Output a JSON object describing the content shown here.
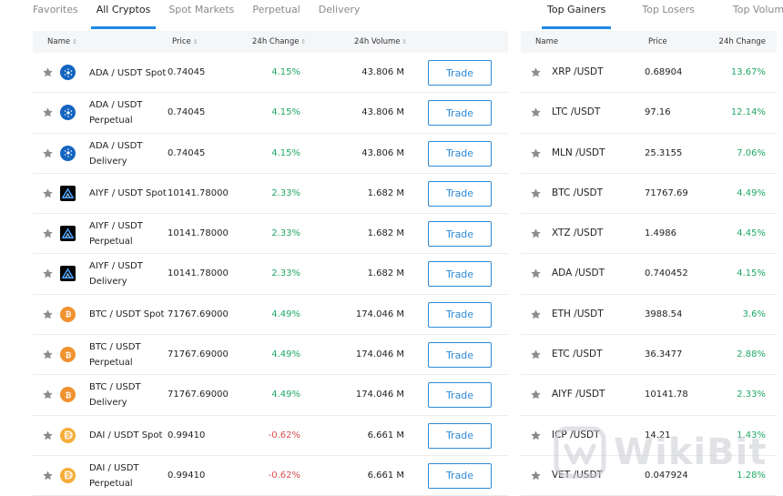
{
  "market_tabs": [
    {
      "label": "Favorites",
      "active": false
    },
    {
      "label": "All Cryptos",
      "active": true
    },
    {
      "label": "Spot Markets",
      "active": false
    },
    {
      "label": "Perpetual",
      "active": false
    },
    {
      "label": "Delivery",
      "active": false
    }
  ],
  "ranking_tabs": [
    {
      "label": "Top Gainers",
      "active": true
    },
    {
      "label": "Top Losers",
      "active": false
    },
    {
      "label": "Top Volume",
      "active": false
    }
  ],
  "left_table": {
    "headers": {
      "name": "Name",
      "price": "Price",
      "change": "24h Change",
      "volume": "24h Volume"
    },
    "trade_label": "Trade",
    "rows": [
      {
        "coin": "ada",
        "icon": "cardano-icon",
        "pair": "ADA / USDT Spot",
        "price": "0.74045",
        "change": "4.15%",
        "volume": "43.806 M",
        "direction": "up"
      },
      {
        "coin": "ada",
        "icon": "cardano-icon",
        "pair": "ADA / USDT Perpetual",
        "price": "0.74045",
        "change": "4.15%",
        "volume": "43.806 M",
        "direction": "up"
      },
      {
        "coin": "ada",
        "icon": "cardano-icon",
        "pair": "ADA / USDT Delivery",
        "price": "0.74045",
        "change": "4.15%",
        "volume": "43.806 M",
        "direction": "up"
      },
      {
        "coin": "aiyf",
        "icon": "aiyf-icon",
        "pair": "AIYF / USDT Spot",
        "price": "10141.78000",
        "change": "2.33%",
        "volume": "1.682 M",
        "direction": "up"
      },
      {
        "coin": "aiyf",
        "icon": "aiyf-icon",
        "pair": "AIYF / USDT Perpetual",
        "price": "10141.78000",
        "change": "2.33%",
        "volume": "1.682 M",
        "direction": "up"
      },
      {
        "coin": "aiyf",
        "icon": "aiyf-icon",
        "pair": "AIYF / USDT Delivery",
        "price": "10141.78000",
        "change": "2.33%",
        "volume": "1.682 M",
        "direction": "up"
      },
      {
        "coin": "btc",
        "icon": "bitcoin-icon",
        "pair": "BTC / USDT Spot",
        "price": "71767.69000",
        "change": "4.49%",
        "volume": "174.046 M",
        "direction": "up"
      },
      {
        "coin": "btc",
        "icon": "bitcoin-icon",
        "pair": "BTC / USDT Perpetual",
        "price": "71767.69000",
        "change": "4.49%",
        "volume": "174.046 M",
        "direction": "up"
      },
      {
        "coin": "btc",
        "icon": "bitcoin-icon",
        "pair": "BTC / USDT Delivery",
        "price": "71767.69000",
        "change": "4.49%",
        "volume": "174.046 M",
        "direction": "up"
      },
      {
        "coin": "dai",
        "icon": "dai-icon",
        "pair": "DAI / USDT Spot",
        "price": "0.99410",
        "change": "-0.62%",
        "volume": "6.661 M",
        "direction": "down"
      },
      {
        "coin": "dai",
        "icon": "dai-icon",
        "pair": "DAI / USDT Perpetual",
        "price": "0.99410",
        "change": "-0.62%",
        "volume": "6.661 M",
        "direction": "down"
      }
    ]
  },
  "right_table": {
    "headers": {
      "name": "Name",
      "price": "Price",
      "change": "24h Change"
    },
    "rows": [
      {
        "pair": "XRP /USDT",
        "price": "0.68904",
        "change": "13.67%"
      },
      {
        "pair": "LTC /USDT",
        "price": "97.16",
        "change": "12.14%"
      },
      {
        "pair": "MLN /USDT",
        "price": "25.3155",
        "change": "7.06%"
      },
      {
        "pair": "BTC /USDT",
        "price": "71767.69",
        "change": "4.49%"
      },
      {
        "pair": "XTZ /USDT",
        "price": "1.4986",
        "change": "4.45%"
      },
      {
        "pair": "ADA /USDT",
        "price": "0.740452",
        "change": "4.15%"
      },
      {
        "pair": "ETH /USDT",
        "price": "3988.54",
        "change": "3.6%"
      },
      {
        "pair": "ETC /USDT",
        "price": "36.3477",
        "change": "2.88%"
      },
      {
        "pair": "AIYF /USDT",
        "price": "10141.78",
        "change": "2.33%"
      },
      {
        "pair": "ICP /USDT",
        "price": "14.21",
        "change": "1.43%"
      },
      {
        "pair": "VET /USDT",
        "price": "0.047924",
        "change": "1.28%"
      }
    ]
  },
  "colors": {
    "up": "#1fa864",
    "down": "#d84e4e",
    "accent": "#1e88e5",
    "star": "#8c8c8c"
  },
  "watermark": {
    "text": "WikiBit"
  }
}
